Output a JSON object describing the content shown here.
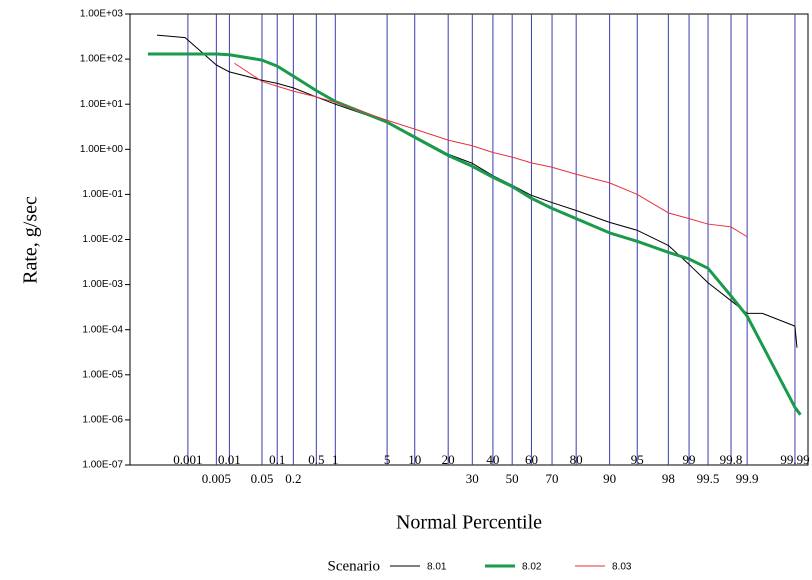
{
  "chart_data": {
    "type": "line",
    "x_label": "Normal Percentile",
    "y_label": "Rate, g/sec",
    "legend_title": "Scenario",
    "x_scale": "probit",
    "y_log": true,
    "grid_x": true,
    "grid_color": "#3b3bb0",
    "legend": "bottom",
    "xlim": [
      2.5e-05,
      99.995
    ],
    "ylim": [
      1e-07,
      1000
    ],
    "xticks": [
      0.001,
      0.005,
      0.01,
      0.05,
      0.1,
      0.2,
      0.5,
      1,
      5,
      10,
      20,
      30,
      40,
      50,
      60,
      70,
      80,
      90,
      95,
      98,
      99,
      99.5,
      99.8,
      99.9,
      99.99
    ],
    "yticks": [
      {
        "value": 1e-07,
        "label": "1.00E-07"
      },
      {
        "value": 1e-06,
        "label": "1.00E-06"
      },
      {
        "value": 1e-05,
        "label": "1.00E-05"
      },
      {
        "value": 0.0001,
        "label": "1.00E-04"
      },
      {
        "value": 0.001,
        "label": "1.00E-03"
      },
      {
        "value": 0.01,
        "label": "1.00E-02"
      },
      {
        "value": 0.1,
        "label": "1.00E-01"
      },
      {
        "value": 1,
        "label": "1.00E+00"
      },
      {
        "value": 10,
        "label": "1.00E+01"
      },
      {
        "value": 100,
        "label": "1.00E+02"
      },
      {
        "value": 1000,
        "label": "1.00E+03"
      }
    ],
    "series": [
      {
        "name": "8.01",
        "color": "#000000",
        "width": 1,
        "x": [
          0.00015,
          0.00085,
          0.005,
          0.01,
          0.05,
          0.1,
          0.2,
          0.5,
          1,
          5,
          10,
          20,
          30,
          40,
          50,
          60,
          70,
          80,
          90,
          95,
          98,
          99,
          99.5,
          99.8,
          99.9,
          99.95,
          99.99,
          99.991
        ],
        "values": [
          340,
          300,
          74,
          52,
          34,
          29,
          23,
          14.5,
          10,
          4,
          1.95,
          0.78,
          0.49,
          0.26,
          0.16,
          0.095,
          0.066,
          0.044,
          0.024,
          0.016,
          0.0074,
          0.0028,
          0.0011,
          0.00044,
          0.00023,
          0.00023,
          0.00012,
          4e-05
        ]
      },
      {
        "name": "8.02",
        "color": "#1a9a4a",
        "width": 3,
        "x": [
          8.3e-05,
          0.005,
          0.01,
          0.05,
          0.1,
          0.2,
          0.5,
          1,
          5,
          10,
          20,
          30,
          40,
          50,
          60,
          70,
          80,
          90,
          95,
          98,
          99,
          99.5,
          99.8,
          99.9,
          99.99,
          99.9925
        ],
        "values": [
          130,
          130,
          125,
          95,
          70,
          42,
          20,
          11.5,
          4,
          1.85,
          0.73,
          0.42,
          0.24,
          0.15,
          0.082,
          0.049,
          0.029,
          0.014,
          0.0091,
          0.0052,
          0.0037,
          0.0023,
          0.00056,
          0.0002,
          1.9e-06,
          1.3e-06
        ]
      },
      {
        "name": "8.03",
        "color": "#e8323c",
        "width": 1,
        "x": [
          0.013,
          0.05,
          0.1,
          0.2,
          0.5,
          1,
          5,
          10,
          20,
          30,
          40,
          50,
          60,
          70,
          80,
          90,
          95,
          98,
          99,
          99.5,
          99.8,
          99.9
        ],
        "values": [
          81,
          32,
          25,
          19.5,
          14.5,
          11,
          4.4,
          2.8,
          1.6,
          1.2,
          0.85,
          0.67,
          0.5,
          0.4,
          0.28,
          0.18,
          0.1,
          0.039,
          0.029,
          0.022,
          0.019,
          0.0115
        ]
      }
    ]
  }
}
